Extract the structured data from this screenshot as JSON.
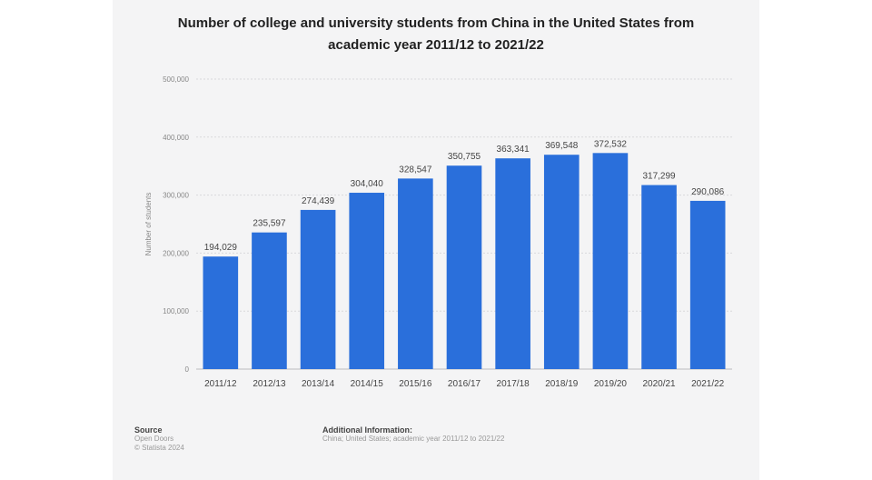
{
  "chart_data": {
    "type": "bar",
    "title_line1": "Number of college and university students from China in the United States from",
    "title_line2": "academic year 2011/12 to 2021/22",
    "ylabel": "Number of students",
    "xlabel": "",
    "categories": [
      "2011/12",
      "2012/13",
      "2013/14",
      "2014/15",
      "2015/16",
      "2016/17",
      "2017/18",
      "2018/19",
      "2019/20",
      "2020/21",
      "2021/22"
    ],
    "values": [
      194029,
      235597,
      274439,
      304040,
      328547,
      350755,
      363341,
      369548,
      372532,
      317299,
      290086
    ],
    "value_labels": [
      "194,029",
      "235,597",
      "274,439",
      "304,040",
      "328,547",
      "350,755",
      "363,341",
      "369,548",
      "372,532",
      "317,299",
      "290,086"
    ],
    "ylim": [
      0,
      500000
    ],
    "yticks": [
      0,
      100000,
      200000,
      300000,
      400000,
      500000
    ],
    "ytick_labels": [
      "0",
      "100,000",
      "200,000",
      "300,000",
      "400,000",
      "500,000"
    ],
    "bar_color": "#2a6fdb",
    "grid": true,
    "legend": "none"
  },
  "footer": {
    "source_heading": "Source",
    "source_lines": [
      "Open Doors",
      "© Statista 2024"
    ],
    "info_heading": "Additional Information:",
    "info_text": "China; United States; academic year 2011/12 to 2021/22"
  }
}
